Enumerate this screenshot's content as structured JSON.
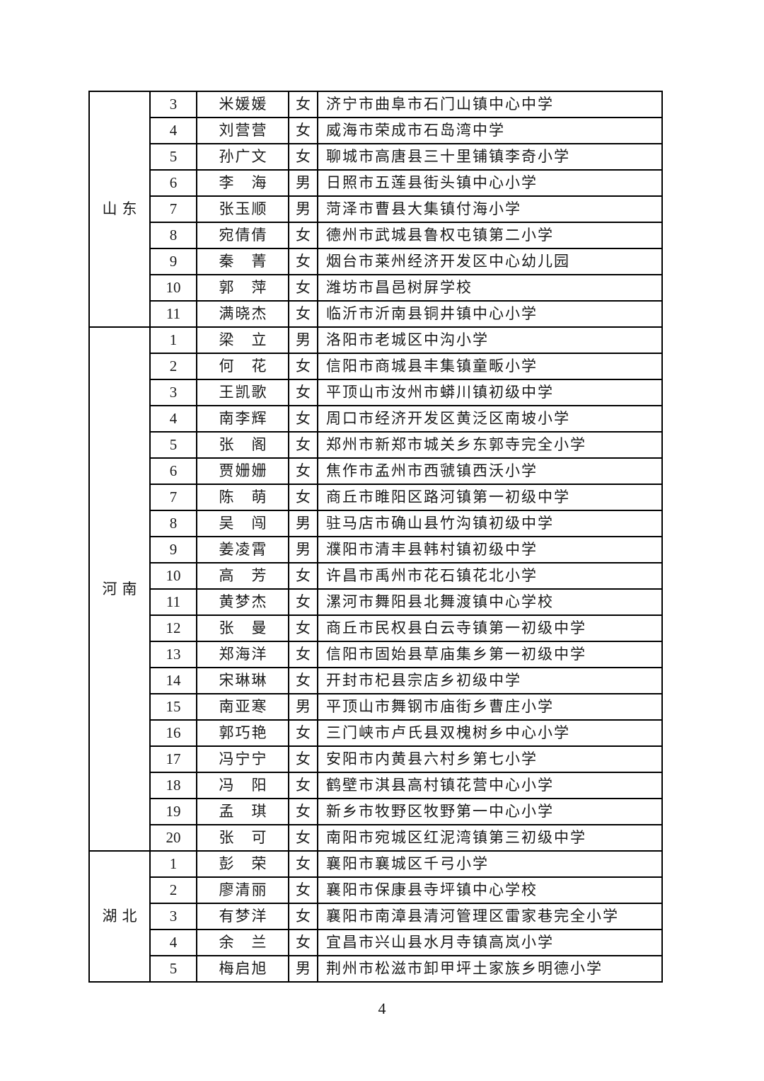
{
  "page": {
    "number": "4"
  },
  "table": {
    "sections": [
      {
        "province": "山东",
        "rows": [
          {
            "no": "3",
            "name": "米媛媛",
            "gender": "女",
            "school": "济宁市曲阜市石门山镇中心中学"
          },
          {
            "no": "4",
            "name": "刘营营",
            "gender": "女",
            "school": "威海市荣成市石岛湾中学"
          },
          {
            "no": "5",
            "name": "孙广文",
            "gender": "女",
            "school": "聊城市高唐县三十里铺镇李奇小学"
          },
          {
            "no": "6",
            "name": "李　海",
            "gender": "男",
            "school": "日照市五莲县街头镇中心小学"
          },
          {
            "no": "7",
            "name": "张玉顺",
            "gender": "男",
            "school": "菏泽市曹县大集镇付海小学"
          },
          {
            "no": "8",
            "name": "宛倩倩",
            "gender": "女",
            "school": "德州市武城县鲁权屯镇第二小学"
          },
          {
            "no": "9",
            "name": "秦　菁",
            "gender": "女",
            "school": "烟台市莱州经济开发区中心幼儿园"
          },
          {
            "no": "10",
            "name": "郭　萍",
            "gender": "女",
            "school": "潍坊市昌邑树屏学校"
          },
          {
            "no": "11",
            "name": "满晓杰",
            "gender": "女",
            "school": "临沂市沂南县铜井镇中心小学"
          }
        ]
      },
      {
        "province": "河南",
        "rows": [
          {
            "no": "1",
            "name": "梁　立",
            "gender": "男",
            "school": "洛阳市老城区中沟小学"
          },
          {
            "no": "2",
            "name": "何　花",
            "gender": "女",
            "school": "信阳市商城县丰集镇童畈小学"
          },
          {
            "no": "3",
            "name": "王凯歌",
            "gender": "女",
            "school": "平顶山市汝州市蟒川镇初级中学"
          },
          {
            "no": "4",
            "name": "南李辉",
            "gender": "女",
            "school": "周口市经济开发区黄泛区南坡小学"
          },
          {
            "no": "5",
            "name": "张　阁",
            "gender": "女",
            "school": "郑州市新郑市城关乡东郭寺完全小学"
          },
          {
            "no": "6",
            "name": "贾姗姗",
            "gender": "女",
            "school": "焦作市孟州市西虢镇西沃小学"
          },
          {
            "no": "7",
            "name": "陈　萌",
            "gender": "女",
            "school": "商丘市睢阳区路河镇第一初级中学"
          },
          {
            "no": "8",
            "name": "吴　闯",
            "gender": "男",
            "school": "驻马店市确山县竹沟镇初级中学"
          },
          {
            "no": "9",
            "name": "姜凌霄",
            "gender": "男",
            "school": "濮阳市清丰县韩村镇初级中学"
          },
          {
            "no": "10",
            "name": "高　芳",
            "gender": "女",
            "school": "许昌市禹州市花石镇花北小学"
          },
          {
            "no": "11",
            "name": "黄梦杰",
            "gender": "女",
            "school": "漯河市舞阳县北舞渡镇中心学校"
          },
          {
            "no": "12",
            "name": "张　曼",
            "gender": "女",
            "school": "商丘市民权县白云寺镇第一初级中学"
          },
          {
            "no": "13",
            "name": "郑海洋",
            "gender": "女",
            "school": "信阳市固始县草庙集乡第一初级中学"
          },
          {
            "no": "14",
            "name": "宋琳琳",
            "gender": "女",
            "school": "开封市杞县宗店乡初级中学"
          },
          {
            "no": "15",
            "name": "南亚寒",
            "gender": "男",
            "school": "平顶山市舞钢市庙街乡曹庄小学"
          },
          {
            "no": "16",
            "name": "郭巧艳",
            "gender": "女",
            "school": "三门峡市卢氏县双槐树乡中心小学"
          },
          {
            "no": "17",
            "name": "冯宁宁",
            "gender": "女",
            "school": "安阳市内黄县六村乡第七小学"
          },
          {
            "no": "18",
            "name": "冯　阳",
            "gender": "女",
            "school": "鹤壁市淇县高村镇花营中心小学"
          },
          {
            "no": "19",
            "name": "孟　琪",
            "gender": "女",
            "school": "新乡市牧野区牧野第一中心小学"
          },
          {
            "no": "20",
            "name": "张　可",
            "gender": "女",
            "school": "南阳市宛城区红泥湾镇第三初级中学"
          }
        ]
      },
      {
        "province": "湖北",
        "rows": [
          {
            "no": "1",
            "name": "彭　荣",
            "gender": "女",
            "school": "襄阳市襄城区千弓小学"
          },
          {
            "no": "2",
            "name": "廖清丽",
            "gender": "女",
            "school": "襄阳市保康县寺坪镇中心学校"
          },
          {
            "no": "3",
            "name": "有梦洋",
            "gender": "女",
            "school": "襄阳市南漳县清河管理区雷家巷完全小学"
          },
          {
            "no": "4",
            "name": "余　兰",
            "gender": "女",
            "school": "宜昌市兴山县水月寺镇高岚小学"
          },
          {
            "no": "5",
            "name": "梅启旭",
            "gender": "男",
            "school": "荆州市松滋市卸甲坪土家族乡明德小学"
          }
        ]
      }
    ]
  }
}
